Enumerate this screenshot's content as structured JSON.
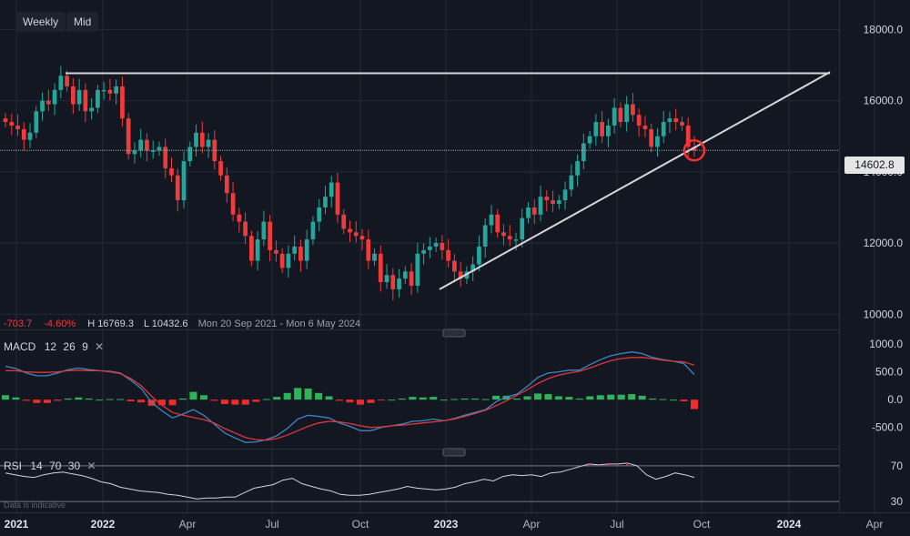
{
  "toolbar": {
    "weekly_label": "Weekly",
    "mid_label": "Mid"
  },
  "info_bar": {
    "change": "-703.7",
    "change_pct": "-4.60%",
    "high": "H 16769.3",
    "low": "L 10432.6",
    "range": "Mon 20 Sep 2021 - Mon 6 May 2024"
  },
  "price_label": "14602.8",
  "macd_legend": {
    "name": "MACD",
    "fast": "12",
    "slow": "26",
    "signal": "9"
  },
  "rsi_legend": {
    "name": "RSI",
    "period": "14",
    "upper": "70",
    "lower": "30"
  },
  "footnote": "Data is indicative",
  "colors": {
    "background": "#131722",
    "up": "#26a69a",
    "down": "#ef3b3b",
    "macd_line": "#3d86c6",
    "signal_line": "#e0373b",
    "trendline": "#d6d6d6",
    "hist_pos": "#2fb35a",
    "hist_neg": "#ef2b2b",
    "grid": "#232838"
  },
  "chart_data": [
    {
      "type": "candlestick",
      "title": "",
      "timeframe": "Weekly",
      "x_ticks": [
        "2021",
        "2022",
        "Apr",
        "Jul",
        "Oct",
        "2023",
        "Apr",
        "Jul",
        "Oct",
        "2024",
        "Apr"
      ],
      "y_ticks": [
        "18000.0",
        "16000.0",
        "14000.0",
        "12000.0",
        "10000.0"
      ],
      "ylim": [
        9700,
        18700
      ],
      "last_price": 14602.8,
      "close_series": [
        15400,
        15300,
        15200,
        14900,
        15100,
        15700,
        16000,
        15900,
        16300,
        16700,
        16400,
        15900,
        16300,
        15700,
        15800,
        16300,
        16300,
        16200,
        16400,
        15500,
        14500,
        14600,
        14900,
        14600,
        14600,
        14700,
        14100,
        13900,
        13200,
        14300,
        14700,
        15100,
        14700,
        14900,
        14300,
        13900,
        13400,
        12800,
        12600,
        12200,
        11500,
        12100,
        12600,
        11800,
        11700,
        11300,
        11700,
        11900,
        11500,
        12100,
        12600,
        13000,
        13300,
        13700,
        12800,
        12400,
        12300,
        12200,
        12100,
        11500,
        11700,
        10900,
        11100,
        10700,
        11000,
        11200,
        10800,
        11700,
        11800,
        11900,
        12000,
        11800,
        11500,
        11200,
        11000,
        11200,
        11400,
        11900,
        12500,
        12800,
        12300,
        12200,
        12100,
        12100,
        12700,
        13000,
        12800,
        13300,
        13200,
        13100,
        13200,
        13500,
        13900,
        14300,
        14800,
        15000,
        15400,
        15000,
        15300,
        15800,
        15400,
        15900,
        15600,
        15300,
        15200,
        14700,
        15000,
        15400,
        15500,
        15400,
        15300,
        14700,
        14602.8
      ],
      "horizontal_resistance": 16769.3,
      "rising_trendline": [
        {
          "x": "Dec 2022",
          "y": 10700
        },
        {
          "x": "Feb 2024",
          "y": 16800
        }
      ],
      "highlight_point": "latest close touching trendline"
    },
    {
      "type": "line",
      "title": "MACD",
      "params": [
        12,
        26,
        9
      ],
      "y_ticks": [
        "1000.0",
        "500.0",
        "0.0",
        "-500.0"
      ],
      "ylim": [
        -800,
        1100
      ],
      "series": [
        {
          "name": "MACD",
          "values": [
            600,
            560,
            480,
            430,
            430,
            480,
            540,
            570,
            540,
            520,
            510,
            480,
            350,
            200,
            -50,
            -200,
            -330,
            -260,
            -180,
            -280,
            -440,
            -600,
            -690,
            -770,
            -760,
            -720,
            -650,
            -520,
            -350,
            -280,
            -300,
            -330,
            -420,
            -480,
            -560,
            -560,
            -500,
            -470,
            -440,
            -390,
            -380,
            -350,
            -380,
            -340,
            -280,
            -230,
            -180,
            -40,
            50,
            100,
            240,
            400,
            480,
            500,
            530,
            530,
            630,
            720,
            790,
            830,
            860,
            830,
            760,
            720,
            690,
            650,
            450
          ]
        },
        {
          "name": "Signal",
          "values": [
            520,
            520,
            500,
            490,
            490,
            500,
            520,
            530,
            520,
            520,
            500,
            470,
            380,
            250,
            60,
            -100,
            -230,
            -280,
            -320,
            -360,
            -420,
            -520,
            -600,
            -680,
            -720,
            -730,
            -700,
            -640,
            -560,
            -480,
            -420,
            -390,
            -400,
            -430,
            -470,
            -500,
            -490,
            -470,
            -460,
            -440,
            -420,
            -400,
            -380,
            -350,
            -300,
            -250,
            -190,
            -110,
            -20,
            80,
            180,
            290,
            380,
            440,
            480,
            510,
            570,
            640,
            700,
            740,
            760,
            760,
            740,
            710,
            690,
            680,
            620
          ]
        }
      ],
      "histogram": [
        80,
        40,
        -20,
        -60,
        -60,
        -20,
        20,
        40,
        20,
        0,
        10,
        10,
        -30,
        -50,
        -110,
        -100,
        -100,
        20,
        140,
        80,
        -20,
        -80,
        -90,
        -90,
        -40,
        10,
        50,
        120,
        210,
        200,
        120,
        60,
        -20,
        -50,
        -90,
        -60,
        -10,
        0,
        20,
        50,
        40,
        50,
        0,
        10,
        20,
        20,
        10,
        70,
        70,
        20,
        60,
        110,
        100,
        60,
        50,
        20,
        60,
        80,
        90,
        90,
        100,
        70,
        20,
        10,
        0,
        -30,
        -170
      ]
    },
    {
      "type": "line",
      "title": "RSI",
      "params": [
        14,
        70,
        30
      ],
      "y_ticks": [
        "70",
        "30"
      ],
      "ylim": [
        20,
        80
      ],
      "series": [
        {
          "name": "RSI",
          "values": [
            62,
            60,
            58,
            57,
            60,
            62,
            63,
            61,
            59,
            56,
            52,
            50,
            46,
            44,
            42,
            41,
            40,
            38,
            37,
            35,
            33,
            34,
            34,
            35,
            35,
            40,
            45,
            47,
            49,
            54,
            56,
            50,
            47,
            44,
            42,
            38,
            37,
            37,
            38,
            40,
            42,
            44,
            47,
            45,
            44,
            43,
            44,
            46,
            50,
            52,
            55,
            53,
            58,
            60,
            59,
            60,
            58,
            62,
            63,
            66,
            69,
            72,
            71,
            72,
            72,
            73,
            70,
            60,
            55,
            58,
            62,
            60,
            57
          ]
        }
      ]
    }
  ]
}
